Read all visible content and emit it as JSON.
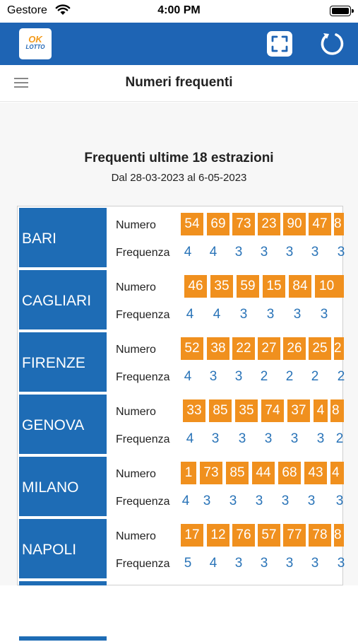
{
  "status_bar": {
    "carrier": "Gestore",
    "time": "4:00 PM"
  },
  "app_bar": {
    "logo_top": "OK",
    "logo_bottom": "LOTTO"
  },
  "header": {
    "title": "Numeri frequenti"
  },
  "section": {
    "title": "Frequenti ultime 18 estrazioni",
    "subtitle": "Dal 28-03-2023 al 6-05-2023"
  },
  "labels": {
    "numero": "Numero",
    "frequenza": "Frequenza"
  },
  "colors": {
    "brand_blue": "#1e64b4",
    "city_blue": "#1e6cb5",
    "number_orange": "#f0901e",
    "freq_blue": "#2a74b8"
  },
  "cities": [
    {
      "name": "BARI",
      "numbers": [
        "54",
        "69",
        "73",
        "23",
        "90",
        "47",
        "8"
      ],
      "frequencies": [
        "4",
        "4",
        "3",
        "3",
        "3",
        "3",
        "3"
      ]
    },
    {
      "name": "CAGLIARI",
      "numbers": [
        "46",
        "35",
        "59",
        "15",
        "84",
        "10"
      ],
      "frequencies": [
        "4",
        "4",
        "3",
        "3",
        "3",
        "3"
      ]
    },
    {
      "name": "FIRENZE",
      "numbers": [
        "52",
        "38",
        "22",
        "27",
        "26",
        "25",
        "2"
      ],
      "frequencies": [
        "4",
        "3",
        "3",
        "2",
        "2",
        "2",
        "2"
      ]
    },
    {
      "name": "GENOVA",
      "numbers": [
        "33",
        "85",
        "35",
        "74",
        "37",
        "4",
        "8"
      ],
      "frequencies": [
        "4",
        "3",
        "3",
        "3",
        "3",
        "3",
        "2"
      ]
    },
    {
      "name": "MILANO",
      "numbers": [
        "1",
        "73",
        "85",
        "44",
        "68",
        "43",
        "4"
      ],
      "frequencies": [
        "4",
        "3",
        "3",
        "3",
        "3",
        "3",
        "3"
      ]
    },
    {
      "name": "NAPOLI",
      "numbers": [
        "17",
        "12",
        "76",
        "57",
        "77",
        "78",
        "8"
      ],
      "frequencies": [
        "5",
        "4",
        "3",
        "3",
        "3",
        "3",
        "3"
      ]
    }
  ]
}
